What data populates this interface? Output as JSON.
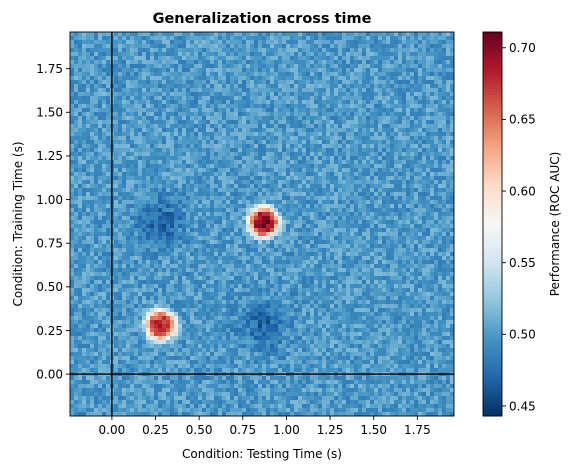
{
  "chart_data": {
    "type": "heatmap",
    "title": "Generalization across time",
    "xlabel": "Condition: Testing Time (s)",
    "ylabel": "Condition: Training Time (s)",
    "xlim": [
      -0.24,
      1.96
    ],
    "ylim": [
      -0.24,
      1.96
    ],
    "x_ticks": [
      0.0,
      0.25,
      0.5,
      0.75,
      1.0,
      1.25,
      1.5,
      1.75
    ],
    "x_tick_labels": [
      "0.00",
      "0.25",
      "0.50",
      "0.75",
      "1.00",
      "1.25",
      "1.50",
      "1.75"
    ],
    "y_ticks": [
      0.0,
      0.25,
      0.5,
      0.75,
      1.0,
      1.25,
      1.5,
      1.75
    ],
    "y_tick_labels": [
      "0.00",
      "0.25",
      "0.50",
      "0.75",
      "1.00",
      "1.25",
      "1.50",
      "1.75"
    ],
    "reference_lines": {
      "x": 0.0,
      "y": 0.0,
      "color": "#000000"
    },
    "colormap": "RdBu_r",
    "colorbar": {
      "label": "Performance (ROC AUC)",
      "range": [
        0.443,
        0.711
      ],
      "ticks": [
        0.45,
        0.5,
        0.55,
        0.6,
        0.65,
        0.7
      ],
      "tick_labels": [
        "0.45",
        "0.50",
        "0.55",
        "0.60",
        "0.65",
        "0.70"
      ]
    },
    "baseline_value": 0.5,
    "peaks": [
      {
        "x": 0.28,
        "y": 0.28,
        "value": 0.68
      },
      {
        "x": 0.87,
        "y": 0.87,
        "value": 0.7
      }
    ],
    "below_baseline_regions": [
      {
        "x": 0.28,
        "y": 0.87,
        "value": 0.47
      },
      {
        "x": 0.87,
        "y": 0.28,
        "value": 0.47
      }
    ]
  }
}
